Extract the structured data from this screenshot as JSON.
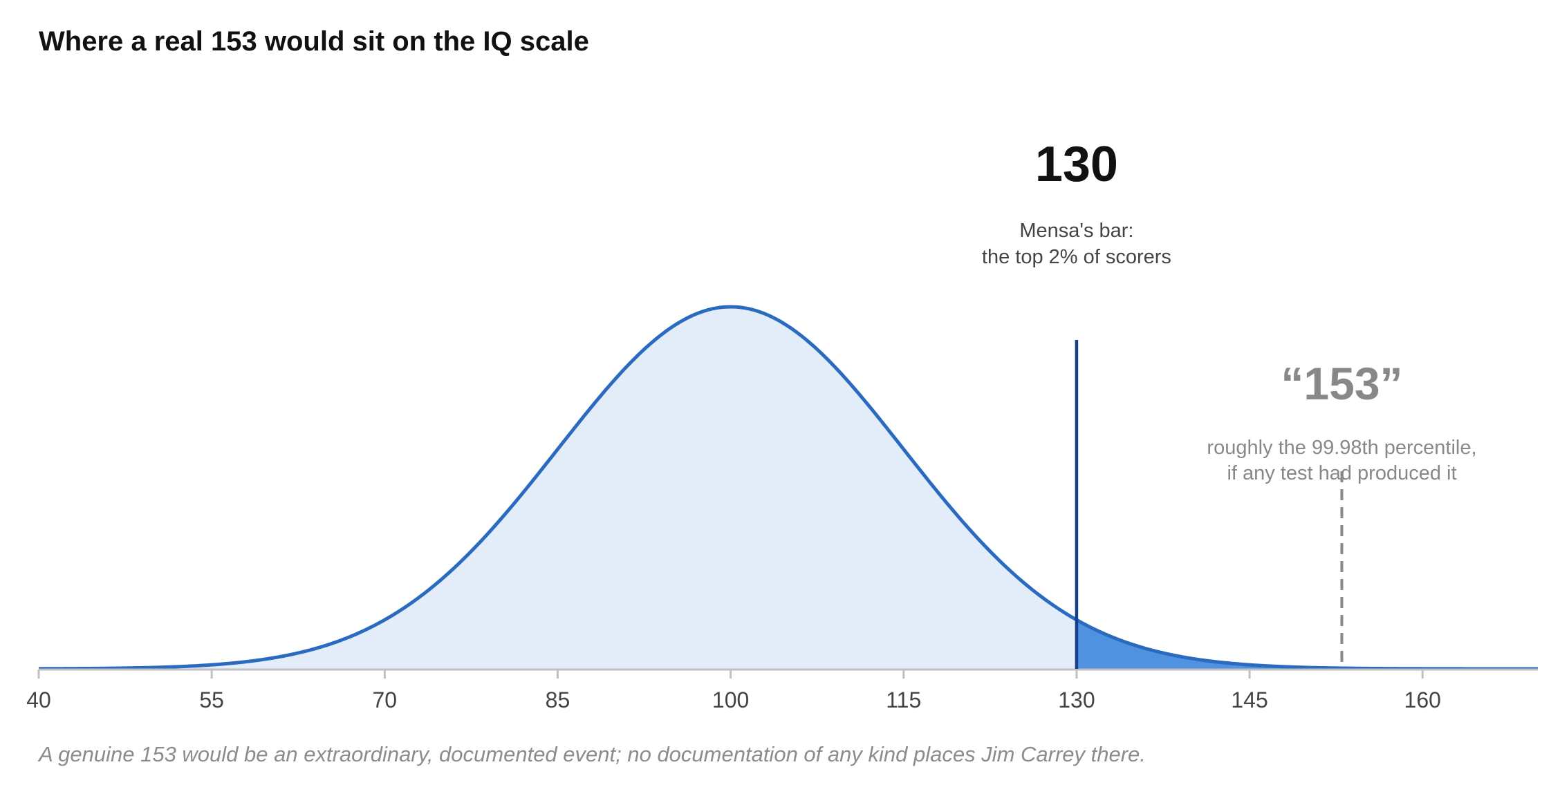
{
  "chart_data": {
    "type": "area",
    "title": "Where a real 153 would sit on the IQ scale",
    "xlabel": "",
    "ylabel": "",
    "distribution": {
      "kind": "normal",
      "mean": 100,
      "sd": 15
    },
    "xlim": [
      40,
      170
    ],
    "x_ticks": [
      40,
      55,
      70,
      85,
      100,
      115,
      130,
      145,
      160
    ],
    "grid": false,
    "shaded_tail_from": 130,
    "colors": {
      "curve": "#2a6bc0",
      "fill": "#e3edf9",
      "tail_fill": "#4f93e0",
      "threshold_line": "#163f8a",
      "claim_line": "#888888",
      "axis": "#c0c0c0",
      "text_dark": "#111111",
      "text_note": "#444444",
      "text_muted": "#888888"
    },
    "markers": [
      {
        "id": "mensa",
        "x": 130,
        "value_label": "130",
        "note_lines": [
          "Mensa's bar:",
          "the top 2% of scorers"
        ],
        "line_style": "solid"
      },
      {
        "id": "claim",
        "x": 153,
        "value_label": "“153”",
        "note_lines": [
          "roughly the 99.98th percentile,",
          "if any test had produced it"
        ],
        "line_style": "dashed"
      }
    ],
    "footnote": "A genuine 153 would be an extraordinary, documented event; no documentation of any kind places Jim Carrey there."
  }
}
